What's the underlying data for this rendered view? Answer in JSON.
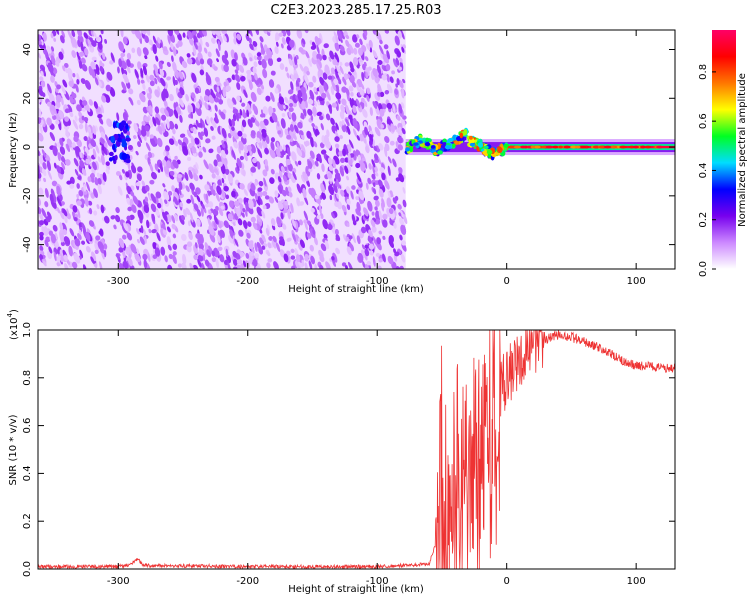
{
  "title": "C2E3.2023.285.17.25.R03",
  "chart_data": [
    {
      "type": "heatmap",
      "title": "C2E3.2023.285.17.25.R03",
      "xlabel": "Height of straight line (km)",
      "ylabel": "Frequency (Hz)",
      "xlim": [
        -362,
        130
      ],
      "ylim": [
        -50,
        48
      ],
      "xticks": [
        -300,
        -200,
        -100,
        0,
        100
      ],
      "yticks": [
        -40,
        -20,
        0,
        20,
        40
      ],
      "colorbar": {
        "label": "Normalized spectral amplitude",
        "range": [
          0,
          0.97
        ],
        "ticks": [
          0.0,
          0.2,
          0.4,
          0.6,
          0.8
        ],
        "colors": [
          "#ffffff",
          "#cc88ff",
          "#7700ee",
          "#0000ff",
          "#00ddff",
          "#00ff22",
          "#ffff00",
          "#ff7700",
          "#ff0000",
          "#ff0066"
        ]
      },
      "regions": [
        {
          "x_range": [
            -362,
            -78
          ],
          "description_amplitude": 0.12,
          "pattern": "broadband noise across all frequencies"
        },
        {
          "x_range": [
            -78,
            130
          ],
          "center_frequency": 0,
          "peak_amplitude": 0.95,
          "pattern": "narrow carrier line near 0 Hz"
        }
      ]
    },
    {
      "type": "line",
      "xlabel": "Height of straight line (km)",
      "ylabel": "SNR (10 * v/v)",
      "y_multiplier": "(x10",
      "y_multiplier_exp": "4",
      "y_multiplier_close": ")",
      "xlim": [
        -362,
        130
      ],
      "ylim": [
        0,
        1.0
      ],
      "xticks": [
        -300,
        -200,
        -100,
        0,
        100
      ],
      "yticks": [
        0.0,
        0.2,
        0.4,
        0.6,
        0.8,
        1.0
      ],
      "series": [
        {
          "color": "#ee3333",
          "x": [
            -362,
            -300,
            -290,
            -285,
            -280,
            -200,
            -100,
            -60,
            -52,
            -45,
            -38,
            -30,
            -22,
            -16,
            -10,
            -5,
            0,
            10,
            20,
            30,
            40,
            50,
            60,
            70,
            80,
            90,
            100,
            110,
            120,
            130
          ],
          "y": [
            0.01,
            0.01,
            0.02,
            0.04,
            0.015,
            0.01,
            0.01,
            0.02,
            0.15,
            0.35,
            0.3,
            0.4,
            0.35,
            0.5,
            0.7,
            0.75,
            0.8,
            0.88,
            0.93,
            0.96,
            0.98,
            0.97,
            0.95,
            0.93,
            0.9,
            0.87,
            0.85,
            0.85,
            0.84,
            0.84
          ]
        }
      ]
    }
  ]
}
